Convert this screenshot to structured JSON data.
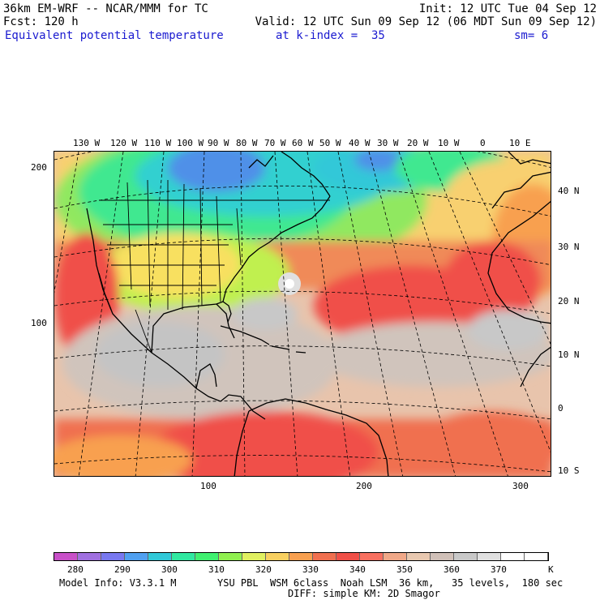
{
  "header": {
    "line1_left": "36km EM-WRF -- NCAR/MMM for TC",
    "line1_right": "Init: 12 UTC Tue 04 Sep 12",
    "line2_left": "Fcst: 120 h",
    "line2_right": "Valid: 12 UTC Sun 09 Sep 12 (06 MDT Sun 09 Sep 12)",
    "field_name": "Equivalent potential temperature",
    "k_index": "at k-index =  35",
    "smoothing": "sm= 6"
  },
  "map": {
    "longitude_labels": [
      "130 W",
      "120 W",
      "110 W",
      "100 W",
      "90 W",
      "80 W",
      "70 W",
      "60 W",
      "50 W",
      "40 W",
      "30 W",
      "20 W",
      "10 W",
      "0",
      "10 E"
    ],
    "latitude_labels": [
      "40 N",
      "30 N",
      "20 N",
      "10 N",
      "0",
      "10 S"
    ],
    "left_axis_labels": [
      "200",
      "100"
    ],
    "bottom_axis_labels": [
      "100",
      "200",
      "300"
    ]
  },
  "colorbar": {
    "colors": [
      "#c850c8",
      "#a070e0",
      "#7878f0",
      "#50a0f0",
      "#30c8d8",
      "#30e8a0",
      "#40f070",
      "#90f050",
      "#e0f060",
      "#f8d060",
      "#f8a050",
      "#f07050",
      "#f05048",
      "#f87060",
      "#f0a888",
      "#e8c8b0",
      "#d0c0b8",
      "#c8c8c8",
      "#e0e0e0",
      "#ffffff",
      "#ffffff"
    ],
    "labels": [
      "280",
      "290",
      "300",
      "310",
      "320",
      "330",
      "340",
      "350",
      "360",
      "370"
    ],
    "unit": "K"
  },
  "footer": {
    "model_info": "Model Info: V3.3.1 M",
    "physics": "YSU PBL  WSM 6class  Noah LSM  36 km,   35 levels,  180 sec",
    "diffusion": "DIFF: simple KM: 2D Smagor"
  }
}
